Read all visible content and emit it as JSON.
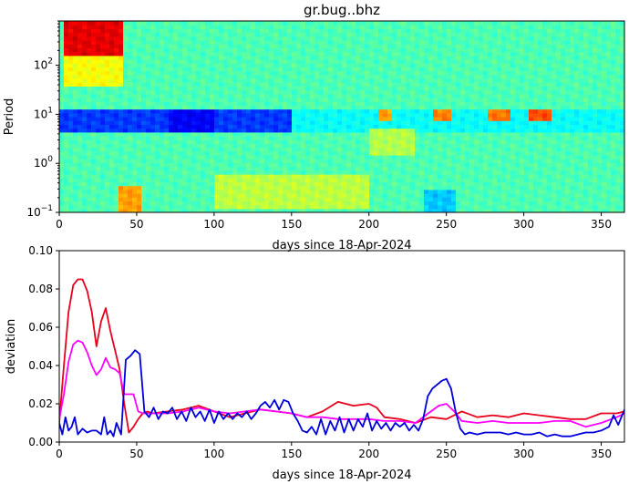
{
  "chart_data": [
    {
      "type": "heatmap",
      "title": "gr.bug..bhz",
      "xlabel": "days since 18-Apr-2024",
      "ylabel": "Period",
      "xlim": [
        0,
        365
      ],
      "ylim": [
        0.1,
        800
      ],
      "yscale": "log",
      "x_ticks": [
        0,
        50,
        100,
        150,
        200,
        250,
        300,
        350
      ],
      "y_ticks": [
        {
          "value": 0.1,
          "base": "10",
          "exp": "−1"
        },
        {
          "value": 1,
          "base": "10",
          "exp": "0"
        },
        {
          "value": 10,
          "base": "10",
          "exp": "1"
        },
        {
          "value": 100,
          "base": "10",
          "exp": "2"
        }
      ],
      "colormap": "jet",
      "background_level": 0.45,
      "features": [
        {
          "x": [
            3,
            42
          ],
          "period": [
            150,
            800
          ],
          "level": 0.9
        },
        {
          "x": [
            3,
            42
          ],
          "period": [
            40,
            150
          ],
          "level": 0.62
        },
        {
          "x": [
            0,
            150
          ],
          "period": [
            4,
            12
          ],
          "level": 0.18
        },
        {
          "x": [
            70,
            100
          ],
          "period": [
            4,
            12
          ],
          "level": 0.12
        },
        {
          "x": [
            150,
            365
          ],
          "period": [
            4,
            14
          ],
          "level": 0.38
        },
        {
          "x": [
            38,
            52
          ],
          "period": [
            0.1,
            0.35
          ],
          "level": 0.72
        },
        {
          "x": [
            235,
            255
          ],
          "period": [
            0.1,
            0.3
          ],
          "level": 0.32
        },
        {
          "x": [
            205,
            215
          ],
          "period": [
            8,
            14
          ],
          "level": 0.72
        },
        {
          "x": [
            240,
            252
          ],
          "period": [
            8,
            14
          ],
          "level": 0.75
        },
        {
          "x": [
            278,
            292
          ],
          "period": [
            8,
            14
          ],
          "level": 0.76
        },
        {
          "x": [
            303,
            318
          ],
          "period": [
            7.5,
            13
          ],
          "level": 0.8
        },
        {
          "x": [
            100,
            200
          ],
          "period": [
            0.12,
            0.6
          ],
          "level": 0.56
        },
        {
          "x": [
            200,
            230
          ],
          "period": [
            1.5,
            5
          ],
          "level": 0.55
        }
      ]
    },
    {
      "type": "line",
      "xlabel": "days since 18-Apr-2024",
      "ylabel": "deviation",
      "xlim": [
        0,
        365
      ],
      "ylim": [
        0,
        0.1
      ],
      "x_ticks": [
        0,
        50,
        100,
        150,
        200,
        250,
        300,
        350
      ],
      "y_ticks": [
        0.0,
        0.02,
        0.04,
        0.06,
        0.08,
        0.1
      ],
      "y_tick_labels": [
        "0.00",
        "0.02",
        "0.04",
        "0.06",
        "0.08",
        "0.10"
      ],
      "series": [
        {
          "color": "#e8001c",
          "x": [
            0,
            3,
            6,
            9,
            12,
            15,
            18,
            21,
            24,
            27,
            30,
            33,
            36,
            39,
            42,
            45,
            48,
            51,
            54,
            57,
            60,
            70,
            80,
            90,
            100,
            110,
            120,
            130,
            140,
            150,
            160,
            170,
            180,
            190,
            200,
            205,
            210,
            220,
            230,
            240,
            250,
            260,
            270,
            280,
            290,
            300,
            310,
            320,
            330,
            340,
            350,
            360,
            365
          ],
          "y": [
            0.01,
            0.04,
            0.068,
            0.082,
            0.085,
            0.085,
            0.079,
            0.068,
            0.05,
            0.063,
            0.07,
            0.058,
            0.048,
            0.038,
            0.02,
            0.005,
            0.008,
            0.012,
            0.015,
            0.016,
            0.015,
            0.016,
            0.017,
            0.019,
            0.016,
            0.013,
            0.015,
            0.017,
            0.016,
            0.015,
            0.013,
            0.016,
            0.021,
            0.019,
            0.02,
            0.018,
            0.013,
            0.012,
            0.01,
            0.013,
            0.012,
            0.016,
            0.013,
            0.014,
            0.013,
            0.015,
            0.014,
            0.013,
            0.012,
            0.012,
            0.015,
            0.015,
            0.016
          ]
        },
        {
          "color": "#ff00ff",
          "x": [
            0,
            3,
            6,
            9,
            12,
            15,
            18,
            21,
            24,
            27,
            30,
            33,
            36,
            39,
            42,
            45,
            48,
            51,
            54,
            57,
            60,
            70,
            80,
            90,
            100,
            110,
            120,
            130,
            140,
            150,
            160,
            170,
            180,
            190,
            200,
            210,
            220,
            230,
            240,
            245,
            250,
            255,
            260,
            270,
            280,
            290,
            300,
            310,
            320,
            330,
            340,
            350,
            360,
            365
          ],
          "y": [
            0.012,
            0.025,
            0.042,
            0.051,
            0.053,
            0.052,
            0.047,
            0.04,
            0.035,
            0.038,
            0.044,
            0.039,
            0.038,
            0.036,
            0.025,
            0.025,
            0.025,
            0.016,
            0.015,
            0.015,
            0.015,
            0.015,
            0.016,
            0.018,
            0.016,
            0.015,
            0.016,
            0.017,
            0.016,
            0.015,
            0.013,
            0.013,
            0.012,
            0.012,
            0.012,
            0.011,
            0.011,
            0.01,
            0.016,
            0.019,
            0.02,
            0.016,
            0.011,
            0.01,
            0.011,
            0.01,
            0.01,
            0.01,
            0.011,
            0.011,
            0.008,
            0.01,
            0.013,
            0.015
          ]
        },
        {
          "color": "#0000dd",
          "x": [
            0,
            2,
            4,
            6,
            8,
            10,
            12,
            15,
            18,
            21,
            24,
            27,
            29,
            31,
            33,
            35,
            37,
            40,
            43,
            46,
            49,
            52,
            55,
            58,
            61,
            64,
            67,
            70,
            73,
            76,
            79,
            82,
            85,
            88,
            91,
            94,
            97,
            100,
            103,
            106,
            109,
            112,
            115,
            118,
            121,
            124,
            127,
            130,
            133,
            136,
            139,
            142,
            145,
            148,
            151,
            154,
            157,
            160,
            163,
            166,
            169,
            172,
            175,
            178,
            181,
            184,
            187,
            190,
            193,
            196,
            199,
            202,
            205,
            208,
            211,
            214,
            217,
            220,
            223,
            226,
            229,
            232,
            235,
            238,
            241,
            244,
            247,
            250,
            253,
            256,
            259,
            262,
            265,
            270,
            275,
            280,
            285,
            290,
            295,
            300,
            305,
            310,
            315,
            320,
            325,
            330,
            335,
            340,
            345,
            350,
            355,
            358,
            361,
            365
          ],
          "y": [
            0.01,
            0.004,
            0.013,
            0.006,
            0.008,
            0.013,
            0.004,
            0.007,
            0.005,
            0.006,
            0.006,
            0.004,
            0.013,
            0.004,
            0.006,
            0.003,
            0.01,
            0.004,
            0.043,
            0.045,
            0.048,
            0.046,
            0.016,
            0.013,
            0.018,
            0.012,
            0.016,
            0.015,
            0.018,
            0.012,
            0.016,
            0.011,
            0.018,
            0.013,
            0.016,
            0.011,
            0.017,
            0.01,
            0.016,
            0.012,
            0.015,
            0.012,
            0.015,
            0.013,
            0.016,
            0.012,
            0.015,
            0.019,
            0.021,
            0.018,
            0.022,
            0.017,
            0.022,
            0.021,
            0.015,
            0.011,
            0.006,
            0.005,
            0.008,
            0.004,
            0.012,
            0.004,
            0.011,
            0.006,
            0.013,
            0.005,
            0.012,
            0.006,
            0.012,
            0.008,
            0.015,
            0.006,
            0.011,
            0.007,
            0.01,
            0.006,
            0.01,
            0.008,
            0.01,
            0.006,
            0.009,
            0.006,
            0.012,
            0.024,
            0.028,
            0.03,
            0.032,
            0.033,
            0.028,
            0.016,
            0.007,
            0.004,
            0.005,
            0.004,
            0.005,
            0.005,
            0.005,
            0.004,
            0.005,
            0.004,
            0.004,
            0.005,
            0.003,
            0.004,
            0.003,
            0.003,
            0.004,
            0.005,
            0.005,
            0.006,
            0.008,
            0.014,
            0.009,
            0.017
          ]
        }
      ]
    }
  ]
}
